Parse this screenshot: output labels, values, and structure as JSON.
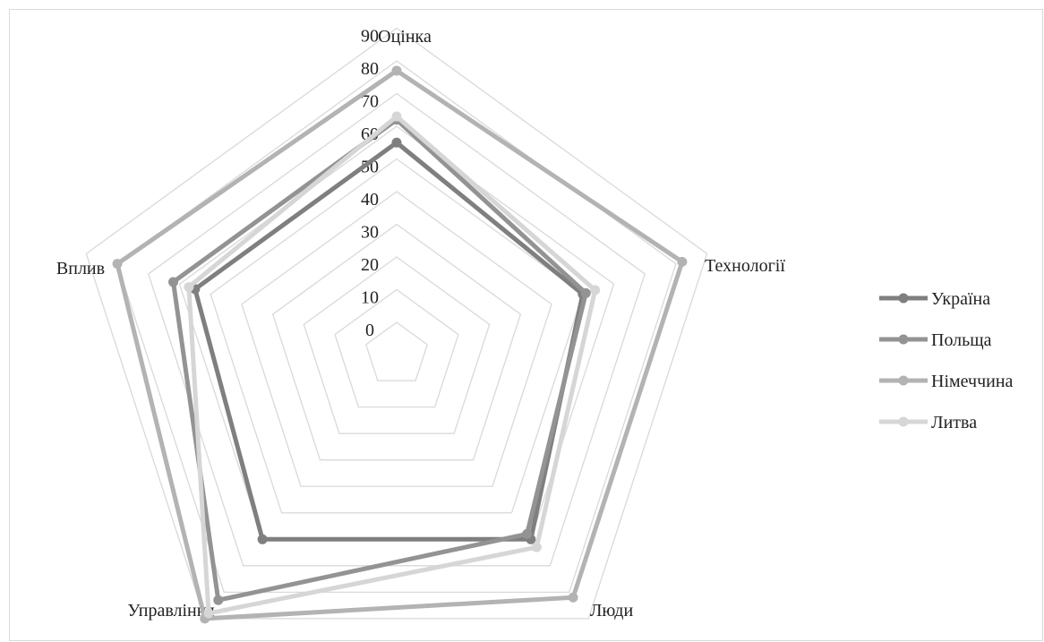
{
  "chart_data": {
    "type": "radar",
    "categories": [
      "Оцінка",
      "Технології",
      "Люди",
      "Управління",
      "Вплив"
    ],
    "rlim": [
      0,
      90
    ],
    "ticks": [
      0,
      10,
      20,
      30,
      40,
      50,
      60,
      70,
      80,
      90
    ],
    "grid": true,
    "legend_position": "right",
    "series": [
      {
        "name": "Україна",
        "color": "#7f7f7f",
        "values": [
          55,
          50,
          60,
          60,
          55
        ]
      },
      {
        "name": "Польща",
        "color": "#939393",
        "values": [
          62,
          51,
          58,
          83,
          62
        ]
      },
      {
        "name": "Німеччина",
        "color": "#b3b3b3",
        "values": [
          77,
          82,
          82,
          90,
          80
        ]
      },
      {
        "name": "Литва",
        "color": "#d6d6d6",
        "values": [
          63,
          54,
          63,
          88,
          57
        ]
      }
    ]
  }
}
